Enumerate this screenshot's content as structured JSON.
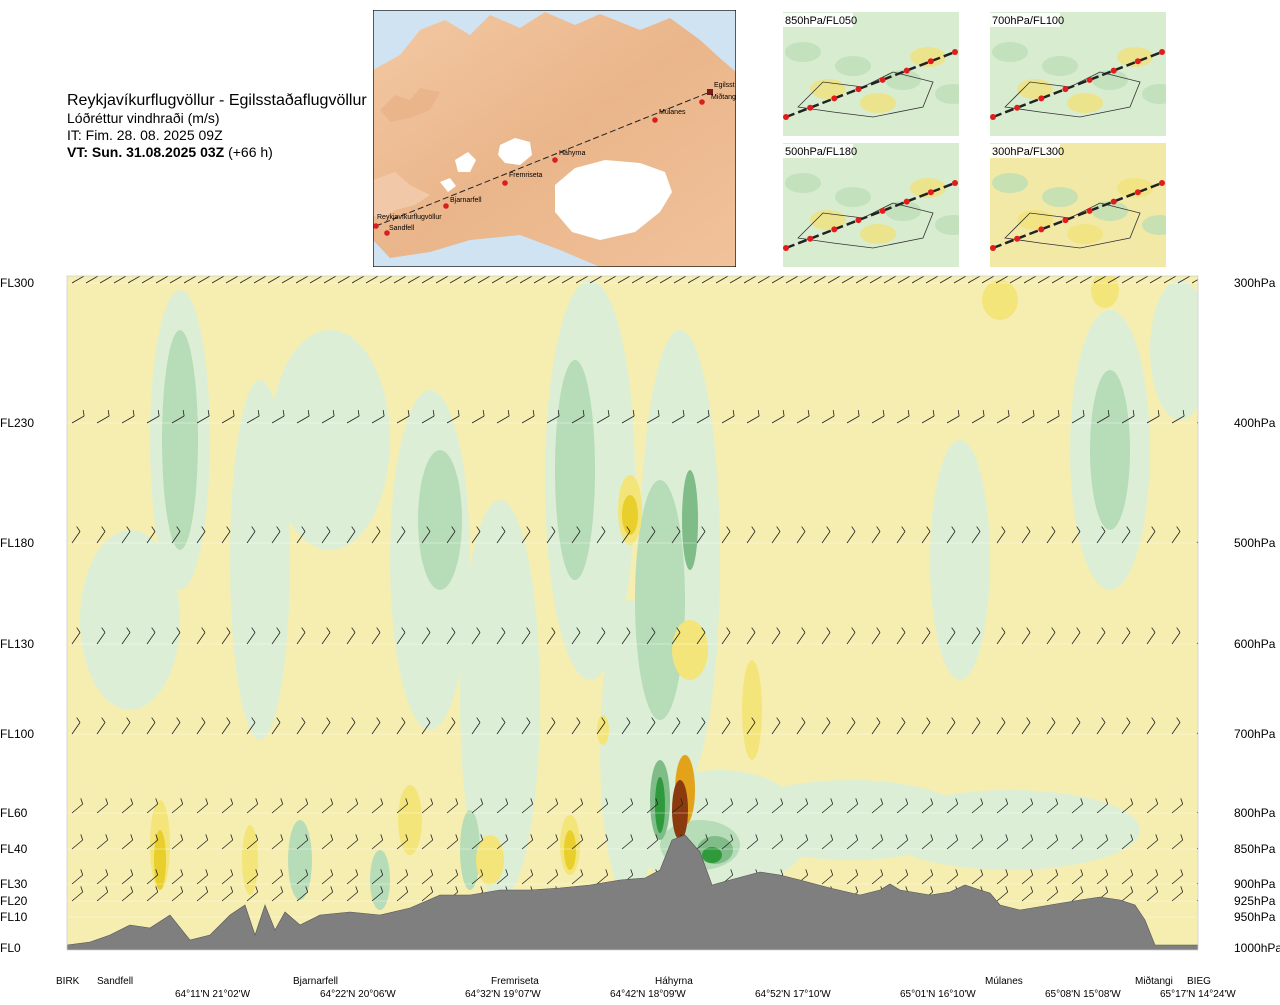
{
  "header": {
    "title": "Reykjavíkurflugvöllur - Egilsstaðaflugvöllur",
    "field": "Lóðréttur vindhraði (m/s)",
    "issue_time": "IT: Fim. 28. 08. 2025 09Z",
    "valid_label": "VT: Sun. 31.08.2025 03Z",
    "valid_offset": "(+66 h)"
  },
  "overview_map": {
    "points": [
      "Reykjavíkurflugvöllur",
      "Sandfell",
      "Bjarnarfell",
      "Fremriseta",
      "Háhyrna",
      "Múlanes",
      "Miðtangi",
      "Egilsst"
    ]
  },
  "mini_maps": [
    {
      "label": "850hPa/FL050"
    },
    {
      "label": "700hPa/FL100"
    },
    {
      "label": "500hPa/FL180"
    },
    {
      "label": "300hPa/FL300"
    }
  ],
  "colors": {
    "background": "#f6eeb0",
    "green_light": "#dcefd6",
    "green_mid": "#b7dcb8",
    "green_dark": "#7fbc88",
    "green_deep": "#2f9a3c",
    "yellow_light": "#f4e57a",
    "yellow_mid": "#e8cf2c",
    "orange": "#e2a21a",
    "brown": "#8b3a10",
    "terrain": "#7f7f7f"
  },
  "chart_data": {
    "type": "heatmap",
    "title": "Lóðréttur vindhraði (m/s)",
    "left_axis_labels": [
      "FL300",
      "FL230",
      "FL180",
      "FL130",
      "FL100",
      "FL60",
      "FL40",
      "FL30",
      "FL20",
      "FL10",
      "FL0"
    ],
    "right_axis_labels": [
      "300hPa",
      "400hPa",
      "500hPa",
      "600hPa",
      "700hPa",
      "800hPa",
      "850hPa",
      "900hPa",
      "925hPa",
      "950hPa",
      "1000hPa"
    ],
    "pressure_levels": [
      300,
      400,
      500,
      600,
      700,
      800,
      850,
      900,
      925,
      950,
      1000
    ],
    "ylim": [
      1000,
      300
    ],
    "waypoints": [
      "BIRK",
      "Sandfell",
      "Bjarnarfell",
      "Fremriseta",
      "Háhyrna",
      "Múlanes",
      "Miðtangi",
      "BIEG"
    ],
    "coordinates": [
      "64°11'N 21°02'W",
      "64°22'N 20°06'W",
      "64°32'N 19°07'W",
      "64°42'N 18°09'W",
      "64°52'N 17°10'W",
      "65°01'N 16°10'W",
      "65°08'N 15°08'W",
      "65°17'N 14°24'W"
    ],
    "wind_barb_levels": [
      300,
      400,
      500,
      600,
      700,
      800,
      850,
      900,
      925
    ],
    "max_uplift_near": "Háhyrna"
  }
}
